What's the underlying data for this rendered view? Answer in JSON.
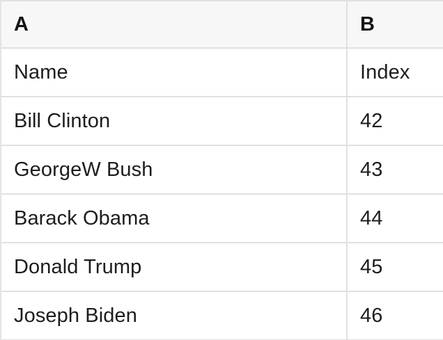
{
  "theme": {
    "border": "#e0e0e0",
    "border_light": "#e4e4e4",
    "header_bg": "#f7f7f7",
    "text": "#1d1d1f",
    "cell_bg": "#ffffff"
  },
  "grid": {
    "column_headers": [
      {
        "label": "A"
      },
      {
        "label": "B"
      }
    ],
    "rows": [
      {
        "a": "Name",
        "b": "Index"
      },
      {
        "a": "Bill Clinton",
        "b": "42"
      },
      {
        "a": "GeorgeW Bush",
        "b": "43"
      },
      {
        "a": "Barack Obama",
        "b": "44"
      },
      {
        "a": "Donald Trump",
        "b": "45"
      },
      {
        "a": "Joseph Biden",
        "b": "46"
      }
    ]
  }
}
